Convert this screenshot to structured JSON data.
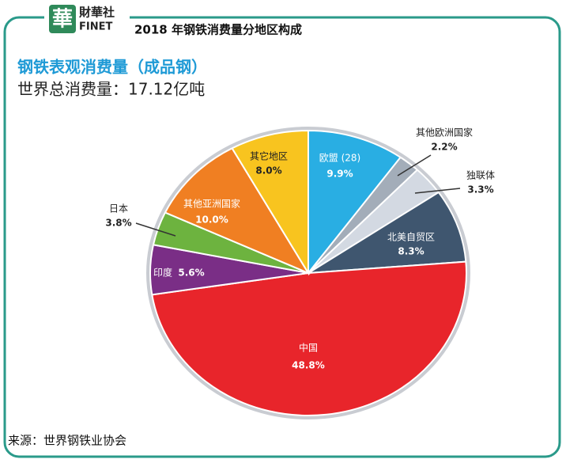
{
  "logo": {
    "mark": "華",
    "name": "財華社",
    "latin": "FINET"
  },
  "chart_data": {
    "type": "pie",
    "title": "2018 年钢铁消费量分地区构成",
    "subtitle": "钢铁表观消费量（成品钢）",
    "total": "世界总消费量：17.12亿吨",
    "source": "来源：世界钢铁业协会",
    "categories": [
      "欧盟 (28)",
      "其他欧洲国家",
      "独联体",
      "北美自贸区",
      "中国",
      "印度",
      "日本",
      "其他亚洲国家",
      "其它地区"
    ],
    "values": [
      9.9,
      2.2,
      3.3,
      8.3,
      48.8,
      5.6,
      3.8,
      10.0,
      8.0
    ],
    "value_labels": [
      "9.9%",
      "2.2%",
      "3.3%",
      "8.3%",
      "48.8%",
      "5.6%",
      "3.8%",
      "10.0%",
      "8.0%"
    ],
    "colors": [
      "#29aee3",
      "#a3adb9",
      "#d3d9e2",
      "#3f566f",
      "#e8252b",
      "#7a2e86",
      "#6db33f",
      "#f07f22",
      "#f8c41f"
    ]
  }
}
